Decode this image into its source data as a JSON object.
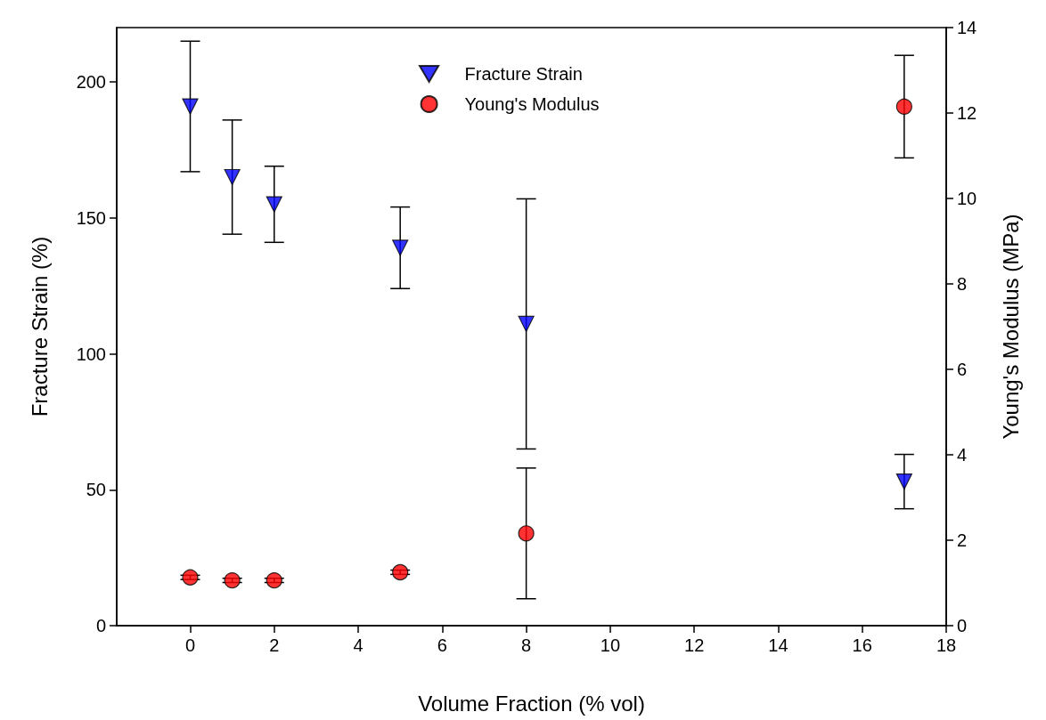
{
  "chart_data": {
    "type": "scatter",
    "xlabel": "Volume Fraction (% vol)",
    "ylabel": "Fracture Strain (%)",
    "y2label": "Young's Modulus (MPa)",
    "x": [
      0,
      1,
      2,
      5,
      8,
      17
    ],
    "series": [
      {
        "name": "Fracture Strain",
        "color": "#0000ff",
        "marker": "triangle",
        "values": [
          191,
          165,
          155,
          139,
          111,
          53
        ],
        "errors": [
          24,
          21,
          14,
          15,
          46,
          10
        ]
      },
      {
        "name": "Young's Modulus",
        "color": "#ff0000",
        "marker": "circle",
        "axis": "y2",
        "values": [
          1.13,
          1.06,
          1.06,
          1.25,
          2.16,
          12.15
        ],
        "errors": [
          0.05,
          0.05,
          0.05,
          0.05,
          1.53,
          1.2
        ]
      }
    ],
    "xlim": [
      -1.75,
      18
    ],
    "xticks": [
      0,
      2,
      4,
      6,
      8,
      10,
      12,
      14,
      16,
      18
    ],
    "ylim": [
      0,
      220
    ],
    "yticks": [
      0,
      50,
      100,
      150,
      200
    ],
    "y2lim": [
      0,
      14
    ],
    "y2ticks": [
      0,
      2,
      4,
      6,
      8,
      10,
      12,
      14
    ],
    "legend": "top",
    "grid": false
  }
}
